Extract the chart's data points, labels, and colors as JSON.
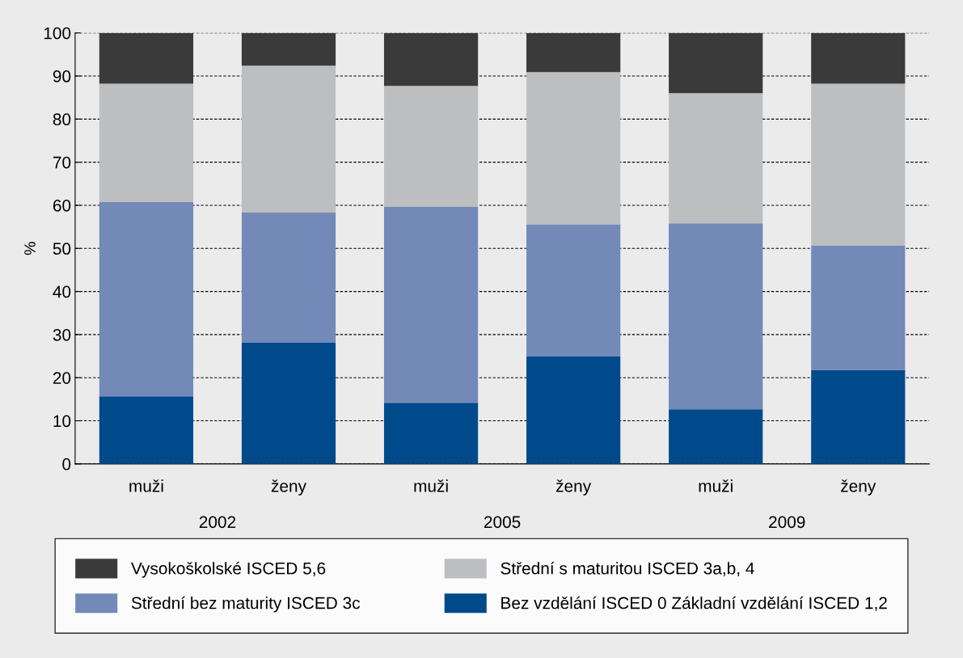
{
  "chart_data": {
    "type": "bar",
    "stacked": true,
    "ylabel": "%",
    "categories": [
      "muži",
      "ženy",
      "muži",
      "ženy",
      "muži",
      "ženy"
    ],
    "annotations": [
      "2002",
      "2005",
      "2009"
    ],
    "series": [
      {
        "name": "Bez vzdělání ISCED 0 Základní vzdělání ISCED 1,2",
        "color": "#004a8c",
        "values": [
          15.7,
          28.2,
          14.2,
          25.0,
          12.7,
          21.8
        ]
      },
      {
        "name": "Střední bez maturity ISCED 3c",
        "color": "#7389b8",
        "values": [
          45.1,
          30.2,
          45.5,
          30.6,
          43.1,
          28.9
        ]
      },
      {
        "name": "Střední s maturitou ISCED 3a,b, 4",
        "color": "#bdbec0",
        "values": [
          27.4,
          34.0,
          28.0,
          35.3,
          30.2,
          37.5
        ]
      },
      {
        "name": "Vysokoškolské ISCED 5,6",
        "color": "#3a3a3a",
        "values": [
          11.8,
          7.6,
          12.3,
          9.1,
          14.0,
          11.8
        ]
      }
    ],
    "ylim": [
      0,
      100
    ],
    "yticks": [
      0,
      10,
      20,
      30,
      40,
      50,
      60,
      70,
      80,
      90,
      100
    ],
    "grid": "y",
    "legend": "bottom"
  }
}
